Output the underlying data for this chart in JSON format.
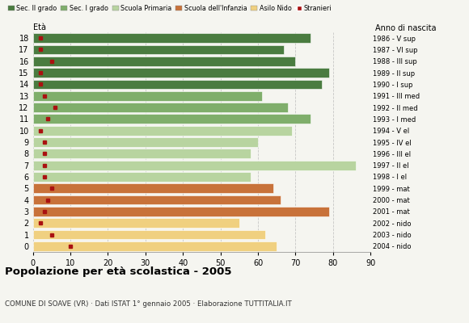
{
  "ages": [
    18,
    17,
    16,
    15,
    14,
    13,
    12,
    11,
    10,
    9,
    8,
    7,
    6,
    5,
    4,
    3,
    2,
    1,
    0
  ],
  "right_labels": [
    "1986 - V sup",
    "1987 - VI sup",
    "1988 - III sup",
    "1989 - II sup",
    "1990 - I sup",
    "1991 - III med",
    "1992 - II med",
    "1993 - I med",
    "1994 - V el",
    "1995 - IV el",
    "1996 - III el",
    "1997 - II el",
    "1998 - I el",
    "1999 - mat",
    "2000 - mat",
    "2001 - mat",
    "2002 - nido",
    "2003 - nido",
    "2004 - nido"
  ],
  "bar_values": [
    74,
    67,
    70,
    79,
    77,
    61,
    68,
    74,
    69,
    60,
    58,
    86,
    58,
    64,
    66,
    79,
    55,
    62,
    65
  ],
  "stranieri": [
    2,
    2,
    5,
    2,
    2,
    3,
    6,
    4,
    2,
    3,
    3,
    3,
    3,
    5,
    4,
    3,
    2,
    5,
    10
  ],
  "bar_colors": [
    "#4a7c40",
    "#4a7c40",
    "#4a7c40",
    "#4a7c40",
    "#4a7c40",
    "#7fae6b",
    "#7fae6b",
    "#7fae6b",
    "#b8d4a0",
    "#b8d4a0",
    "#b8d4a0",
    "#b8d4a0",
    "#b8d4a0",
    "#c8723a",
    "#c8723a",
    "#c8723a",
    "#f0d080",
    "#f0d080",
    "#f0d080"
  ],
  "stranieri_color": "#aa1111",
  "legend_labels": [
    "Sec. II grado",
    "Sec. I grado",
    "Scuola Primaria",
    "Scuola dell'Infanzia",
    "Asilo Nido",
    "Stranieri"
  ],
  "legend_colors": [
    "#4a7c40",
    "#7fae6b",
    "#b8d4a0",
    "#c8723a",
    "#f0d080",
    "#aa1111"
  ],
  "title": "Popolazione per età scolastica - 2005",
  "subtitle": "COMUNE DI SOAVE (VR) · Dati ISTAT 1° gennaio 2005 · Elaborazione TUTTITALIA.IT",
  "ylabel": "Età",
  "right_ylabel": "Anno di nascita",
  "xlim": [
    0,
    90
  ],
  "xticks": [
    0,
    10,
    20,
    30,
    40,
    50,
    60,
    70,
    80,
    90
  ],
  "background_color": "#f5f5f0",
  "bar_height": 0.82,
  "grid_color": "#bbbbbb"
}
